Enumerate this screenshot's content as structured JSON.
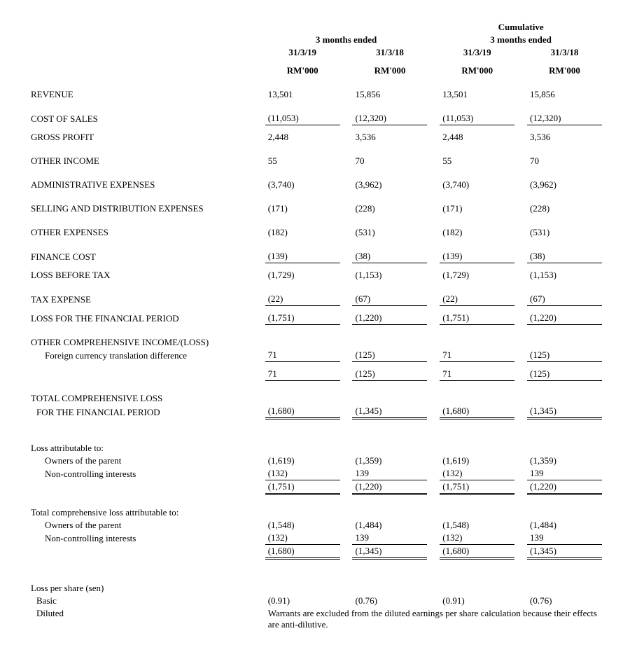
{
  "headers": {
    "group1": "3 months ended",
    "group2_top": "Cumulative",
    "group2": "3 months ended",
    "col1": "31/3/19",
    "col2": "31/3/18",
    "col3": "31/3/19",
    "col4": "31/3/18",
    "unit": "RM'000"
  },
  "rows": {
    "revenue": {
      "label": "REVENUE",
      "v": [
        "13,501",
        "15,856",
        "13,501",
        "15,856"
      ]
    },
    "cost_of_sales": {
      "label": "COST OF SALES",
      "v": [
        "(11,053)",
        "(12,320)",
        "(11,053)",
        "(12,320)"
      ]
    },
    "gross_profit": {
      "label": "GROSS PROFIT",
      "v": [
        "2,448",
        "3,536",
        "2,448",
        "3,536"
      ]
    },
    "other_income": {
      "label": "OTHER INCOME",
      "v": [
        "55",
        "70",
        "55",
        "70"
      ]
    },
    "admin_exp": {
      "label": "ADMINISTRATIVE EXPENSES",
      "v": [
        "(3,740)",
        "(3,962)",
        "(3,740)",
        "(3,962)"
      ]
    },
    "selling_exp": {
      "label": "SELLING AND DISTRIBUTION EXPENSES",
      "v": [
        "(171)",
        "(228)",
        "(171)",
        "(228)"
      ]
    },
    "other_exp": {
      "label": "OTHER EXPENSES",
      "v": [
        "(182)",
        "(531)",
        "(182)",
        "(531)"
      ]
    },
    "finance_cost": {
      "label": "FINANCE COST",
      "v": [
        "(139)",
        "(38)",
        "(139)",
        "(38)"
      ]
    },
    "loss_before_tax": {
      "label": "LOSS BEFORE TAX",
      "v": [
        "(1,729)",
        "(1,153)",
        "(1,729)",
        "(1,153)"
      ]
    },
    "tax_exp": {
      "label": "TAX EXPENSE",
      "v": [
        "(22)",
        "(67)",
        "(22)",
        "(67)"
      ]
    },
    "loss_period": {
      "label": "LOSS FOR THE FINANCIAL PERIOD",
      "v": [
        "(1,751)",
        "(1,220)",
        "(1,751)",
        "(1,220)"
      ]
    },
    "oci_header": {
      "label": "OTHER COMPREHENSIVE INCOME/(LOSS)"
    },
    "fx_diff": {
      "label": "Foreign currency translation difference",
      "v": [
        "71",
        "(125)",
        "71",
        "(125)"
      ]
    },
    "oci_total": {
      "v": [
        "71",
        "(125)",
        "71",
        "(125)"
      ]
    },
    "tcl_header1": {
      "label": "TOTAL COMPREHENSIVE LOSS"
    },
    "tcl_header2": {
      "label": "FOR THE FINANCIAL PERIOD",
      "v": [
        "(1,680)",
        "(1,345)",
        "(1,680)",
        "(1,345)"
      ]
    },
    "loss_attr_hdr": {
      "label": "Loss attributable to:"
    },
    "loss_owners": {
      "label": "Owners of the parent",
      "v": [
        "(1,619)",
        "(1,359)",
        "(1,619)",
        "(1,359)"
      ]
    },
    "loss_nci": {
      "label": "Non-controlling interests",
      "v": [
        "(132)",
        "139",
        "(132)",
        "139"
      ]
    },
    "loss_attr_total": {
      "v": [
        "(1,751)",
        "(1,220)",
        "(1,751)",
        "(1,220)"
      ]
    },
    "tcl_attr_hdr": {
      "label": "Total comprehensive loss attributable to:"
    },
    "tcl_owners": {
      "label": "Owners of the parent",
      "v": [
        "(1,548)",
        "(1,484)",
        "(1,548)",
        "(1,484)"
      ]
    },
    "tcl_nci": {
      "label": "Non-controlling interests",
      "v": [
        "(132)",
        "139",
        "(132)",
        "139"
      ]
    },
    "tcl_attr_total": {
      "v": [
        "(1,680)",
        "(1,345)",
        "(1,680)",
        "(1,345)"
      ]
    },
    "lps_hdr": {
      "label": "Loss per share (sen)"
    },
    "lps_basic": {
      "label": "Basic",
      "v": [
        "(0.91)",
        "(0.76)",
        "(0.91)",
        "(0.76)"
      ]
    },
    "lps_diluted": {
      "label": "Diluted"
    },
    "diluted_note": "Warrants are excluded from the diluted earnings per share calculation because their effects are anti-dilutive."
  }
}
